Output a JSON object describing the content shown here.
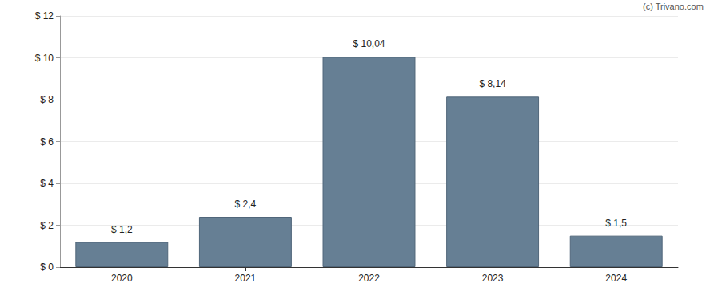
{
  "chart_data": {
    "type": "bar",
    "annotations": [
      "(c) Trivano.com"
    ],
    "categories": [
      "2020",
      "2021",
      "2022",
      "2023",
      "2024"
    ],
    "values": [
      1.2,
      2.4,
      10.04,
      8.14,
      1.5
    ],
    "value_labels": [
      "$ 1,2",
      "$ 2,4",
      "$ 10,04",
      "$ 8,14",
      "$ 1,5"
    ],
    "data_labels": true,
    "color": "#667f94",
    "ylim": [
      0,
      12
    ],
    "yticks": [
      {
        "value": 0,
        "label": "$ 0"
      },
      {
        "value": 2,
        "label": "$ 2"
      },
      {
        "value": 4,
        "label": "$ 4"
      },
      {
        "value": 6,
        "label": "$ 6"
      },
      {
        "value": 8,
        "label": "$ 8"
      },
      {
        "value": 10,
        "label": "$ 10"
      },
      {
        "value": 12,
        "label": "$ 12"
      }
    ],
    "grid": true
  }
}
